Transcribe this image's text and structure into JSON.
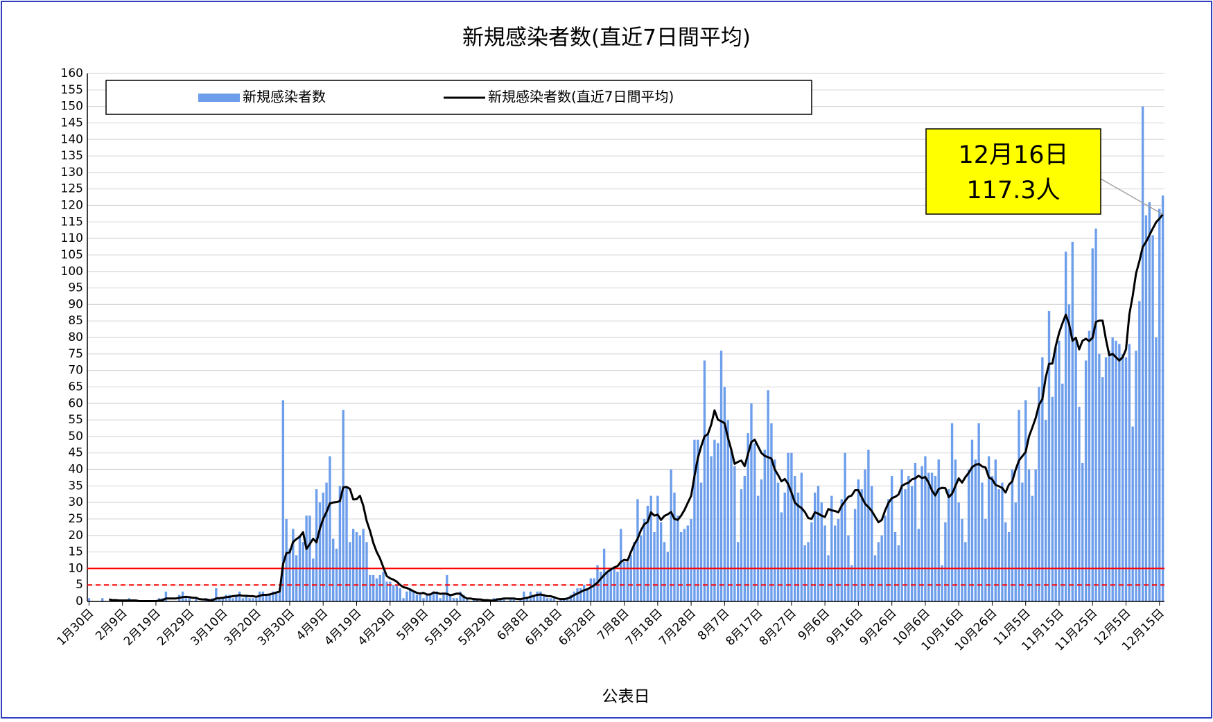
{
  "chart_data": {
    "type": "bar",
    "title": "新規感染者数(直近7日間平均)",
    "x_label": "公表日",
    "categories": [
      "1月30日",
      null,
      null,
      null,
      null,
      null,
      null,
      null,
      null,
      null,
      "2月9日",
      null,
      null,
      null,
      null,
      null,
      null,
      null,
      null,
      null,
      "2月19日",
      null,
      null,
      null,
      null,
      null,
      null,
      null,
      null,
      null,
      "2月29日",
      null,
      null,
      null,
      null,
      null,
      null,
      null,
      null,
      null,
      "3月10日",
      null,
      null,
      null,
      null,
      null,
      null,
      null,
      null,
      null,
      "3月20日",
      null,
      null,
      null,
      null,
      null,
      null,
      null,
      null,
      null,
      "3月30日",
      null,
      null,
      null,
      null,
      null,
      null,
      null,
      null,
      null,
      "4月9日",
      null,
      null,
      null,
      null,
      null,
      null,
      null,
      null,
      null,
      "4月19日",
      null,
      null,
      null,
      null,
      null,
      null,
      null,
      null,
      null,
      "4月29日",
      null,
      null,
      null,
      null,
      null,
      null,
      null,
      null,
      null,
      "5月9日",
      null,
      null,
      null,
      null,
      null,
      null,
      null,
      null,
      null,
      "5月19日",
      null,
      null,
      null,
      null,
      null,
      null,
      null,
      null,
      null,
      "5月29日",
      null,
      null,
      null,
      null,
      null,
      null,
      null,
      null,
      null,
      "6月8日",
      null,
      null,
      null,
      null,
      null,
      null,
      null,
      null,
      null,
      "6月18日",
      null,
      null,
      null,
      null,
      null,
      null,
      null,
      null,
      null,
      "6月28日",
      null,
      null,
      null,
      null,
      null,
      null,
      null,
      null,
      null,
      "7月8日",
      null,
      null,
      null,
      null,
      null,
      null,
      null,
      null,
      null,
      "7月18日",
      null,
      null,
      null,
      null,
      null,
      null,
      null,
      null,
      null,
      "7月28日",
      null,
      null,
      null,
      null,
      null,
      null,
      null,
      null,
      null,
      "8月7日",
      null,
      null,
      null,
      null,
      null,
      null,
      null,
      null,
      null,
      "8月17日",
      null,
      null,
      null,
      null,
      null,
      null,
      null,
      null,
      null,
      "8月27日",
      null,
      null,
      null,
      null,
      null,
      null,
      null,
      null,
      null,
      "9月6日",
      null,
      null,
      null,
      null,
      null,
      null,
      null,
      null,
      null,
      "9月16日",
      null,
      null,
      null,
      null,
      null,
      null,
      null,
      null,
      null,
      "9月26日",
      null,
      null,
      null,
      null,
      null,
      null,
      null,
      null,
      null,
      "10月6日",
      null,
      null,
      null,
      null,
      null,
      null,
      null,
      null,
      null,
      "10月16日",
      null,
      null,
      null,
      null,
      null,
      null,
      null,
      null,
      null,
      "10月26日",
      null,
      null,
      null,
      null,
      null,
      null,
      null,
      null,
      null,
      "11月5日",
      null,
      null,
      null,
      null,
      null,
      null,
      null,
      null,
      null,
      "11月15日",
      null,
      null,
      null,
      null,
      null,
      null,
      null,
      null,
      null,
      "11月25日",
      null,
      null,
      null,
      null,
      null,
      null,
      null,
      null,
      null,
      "12月5日",
      null,
      null,
      null,
      null,
      null,
      null,
      null,
      null,
      null,
      "12月15日",
      null
    ],
    "series": [
      {
        "name": "新規感染者数",
        "type": "bar",
        "color": "#6d9eeb",
        "values": [
          1,
          0,
          0,
          0,
          1,
          0,
          0,
          0,
          0,
          0,
          0,
          0,
          1,
          0,
          0,
          0,
          0,
          0,
          0,
          0,
          0,
          1,
          1,
          3,
          0,
          0,
          0,
          2,
          3,
          1,
          1,
          0,
          1,
          0,
          0,
          1,
          0,
          1,
          4,
          1,
          1,
          2,
          2,
          1,
          2,
          3,
          1,
          2,
          1,
          1,
          1,
          3,
          3,
          2,
          2,
          3,
          3,
          4,
          61,
          25,
          16,
          22,
          14,
          20,
          18,
          26,
          26,
          13,
          34,
          30,
          33,
          36,
          44,
          19,
          16,
          35,
          58,
          35,
          18,
          22,
          21,
          20,
          22,
          18,
          8,
          8,
          7,
          8,
          9,
          6,
          6,
          5,
          5,
          4,
          1,
          3,
          4,
          3,
          2,
          2,
          1,
          2,
          2,
          3,
          3,
          1,
          2,
          8,
          2,
          1,
          1,
          3,
          2,
          1,
          0,
          1,
          1,
          0,
          0,
          0,
          0,
          1,
          1,
          1,
          1,
          0,
          1,
          1,
          0,
          1,
          3,
          1,
          3,
          2,
          3,
          3,
          2,
          1,
          1,
          1,
          0,
          1,
          1,
          1,
          2,
          3,
          4,
          4,
          5,
          4,
          7,
          7,
          11,
          9,
          16,
          9,
          10,
          10,
          9,
          22,
          12,
          12,
          14,
          18,
          31,
          20,
          25,
          29,
          32,
          21,
          32,
          24,
          18,
          15,
          40,
          33,
          26,
          21,
          22,
          23,
          25,
          49,
          49,
          36,
          73,
          51,
          44,
          49,
          48,
          76,
          65,
          55,
          46,
          41,
          18,
          34,
          38,
          51,
          60,
          48,
          32,
          37,
          46,
          64,
          54,
          43,
          36,
          27,
          33,
          45,
          45,
          38,
          33,
          39,
          17,
          18,
          24,
          33,
          35,
          30,
          23,
          14,
          32,
          23,
          25,
          31,
          45,
          20,
          11,
          28,
          37,
          34,
          40,
          46,
          35,
          14,
          18,
          20,
          26,
          31,
          38,
          21,
          17,
          40,
          34,
          38,
          35,
          42,
          22,
          41,
          44,
          39,
          39,
          38,
          43,
          11,
          24,
          34,
          54,
          43,
          30,
          25,
          18,
          40,
          49,
          43,
          54,
          36,
          25,
          44,
          38,
          43,
          34,
          36,
          24,
          21,
          40,
          30,
          58,
          36,
          61,
          40,
          32,
          40,
          65,
          74,
          55,
          88,
          62,
          77,
          79,
          66,
          106,
          90,
          109,
          80,
          59,
          42,
          73,
          82,
          107,
          113,
          75,
          68,
          74,
          76,
          80,
          79,
          78,
          75,
          74,
          78,
          53,
          76,
          91,
          150,
          117,
          121,
          111,
          80,
          119,
          123
        ]
      },
      {
        "name": "新規感染者数(直近7日間平均)",
        "type": "line",
        "color": "#000000",
        "values": [
          null,
          null,
          null,
          null,
          null,
          null,
          0.6,
          0.4,
          0.4,
          0.3,
          0.3,
          0.3,
          0.3,
          0.3,
          0.3,
          0.1,
          0.1,
          0.1,
          0.1,
          0.1,
          0.1,
          0.3,
          0.4,
          0.9,
          0.9,
          0.9,
          0.9,
          1.1,
          1.3,
          1.4,
          1.3,
          1.1,
          1.1,
          0.7,
          0.6,
          0.6,
          0.4,
          0.4,
          0.9,
          1.0,
          1.1,
          1.3,
          1.4,
          1.6,
          1.7,
          1.9,
          1.7,
          1.7,
          1.6,
          1.6,
          1.4,
          1.7,
          2.0,
          2.0,
          2.1,
          2.4,
          2.7,
          3.0,
          11.3,
          14.6,
          14.9,
          18.0,
          18.9,
          19.6,
          21.0,
          15.9,
          17.4,
          19.0,
          17.9,
          22.0,
          25.0,
          27.1,
          29.7,
          30.0,
          30.1,
          30.4,
          34.6,
          34.7,
          34.1,
          30.9,
          31.0,
          32.0,
          29.0,
          24.4,
          21.4,
          17.7,
          15.0,
          13.0,
          10.3,
          7.7,
          7.0,
          6.6,
          6.0,
          5.0,
          4.3,
          4.1,
          3.6,
          3.1,
          2.6,
          2.4,
          2.6,
          2.1,
          2.1,
          2.7,
          2.6,
          2.3,
          2.4,
          2.3,
          1.9,
          2.1,
          2.4,
          2.3,
          1.4,
          0.9,
          0.9,
          0.7,
          0.6,
          0.6,
          0.4,
          0.4,
          0.3,
          0.3,
          0.6,
          0.7,
          0.9,
          0.9,
          0.9,
          0.9,
          0.7,
          0.7,
          0.9,
          1.1,
          1.4,
          1.7,
          2.0,
          2.1,
          1.9,
          1.6,
          1.6,
          1.3,
          0.9,
          0.7,
          0.7,
          0.9,
          1.3,
          1.9,
          2.4,
          2.9,
          3.4,
          3.7,
          4.3,
          4.9,
          5.7,
          6.9,
          8.0,
          9.0,
          9.7,
          10.3,
          10.7,
          12.0,
          12.6,
          12.4,
          15.0,
          17.3,
          19.0,
          21.6,
          23.4,
          24.1,
          27.0,
          26.0,
          26.3,
          24.7,
          25.9,
          26.4,
          27.1,
          25.0,
          24.7,
          26.0,
          27.7,
          29.9,
          32.0,
          38.0,
          43.4,
          47.0,
          50.0,
          50.7,
          53.6,
          57.9,
          55.1,
          54.6,
          54.0,
          49.6,
          46.0,
          41.7,
          42.3,
          42.7,
          41.0,
          44.7,
          48.3,
          49.0,
          47.0,
          45.0,
          44.1,
          43.7,
          43.3,
          40.0,
          38.3,
          36.4,
          37.1,
          35.6,
          33.0,
          30.0,
          29.0,
          28.3,
          27.1,
          25.3,
          25.0,
          27.0,
          26.6,
          26.0,
          25.6,
          28.0,
          27.6,
          27.4,
          27.0,
          29.0,
          30.4,
          31.7,
          32.1,
          33.7,
          33.7,
          31.6,
          29.6,
          28.6,
          27.4,
          25.7,
          24.0,
          24.7,
          27.6,
          29.9,
          31.3,
          31.7,
          32.4,
          35.0,
          35.6,
          36.0,
          37.0,
          37.3,
          38.1,
          37.4,
          37.7,
          36.0,
          33.6,
          32.1,
          34.1,
          34.4,
          34.3,
          31.6,
          32.6,
          35.0,
          37.3,
          36.0,
          37.7,
          39.0,
          40.7,
          41.4,
          41.7,
          40.9,
          40.6,
          37.6,
          37.0,
          35.3,
          34.9,
          34.4,
          33.0,
          35.4,
          36.4,
          39.9,
          42.7,
          44.0,
          45.3,
          50.0,
          52.7,
          55.6,
          59.6,
          61.3,
          67.9,
          72.0,
          72.1,
          77.4,
          81.4,
          84.3,
          86.9,
          84.0,
          79.0,
          79.9,
          76.4,
          79.0,
          79.6,
          78.9,
          79.9,
          84.7,
          85.1,
          85.1,
          79.4,
          74.6,
          75.0,
          74.0,
          73.0,
          74.0,
          76.4,
          87.0,
          92.6,
          99.4,
          103.1,
          107.4,
          109.0,
          111.0,
          113.0,
          114.9,
          116.0,
          117.3
        ]
      }
    ],
    "reference_lines": [
      {
        "value": 10,
        "color": "#ff0000",
        "style": "solid"
      },
      {
        "value": 5,
        "color": "#ff0000",
        "style": "dashed"
      }
    ],
    "annotation": [
      "12月16日",
      "117.3人"
    ],
    "ylim": [
      0,
      160
    ],
    "yticks": [
      0,
      5,
      10,
      15,
      20,
      25,
      30,
      35,
      40,
      45,
      50,
      55,
      60,
      65,
      70,
      75,
      80,
      85,
      90,
      95,
      100,
      105,
      110,
      115,
      120,
      125,
      130,
      135,
      140,
      145,
      150,
      155,
      160
    ],
    "grid": true,
    "legend": "top"
  }
}
